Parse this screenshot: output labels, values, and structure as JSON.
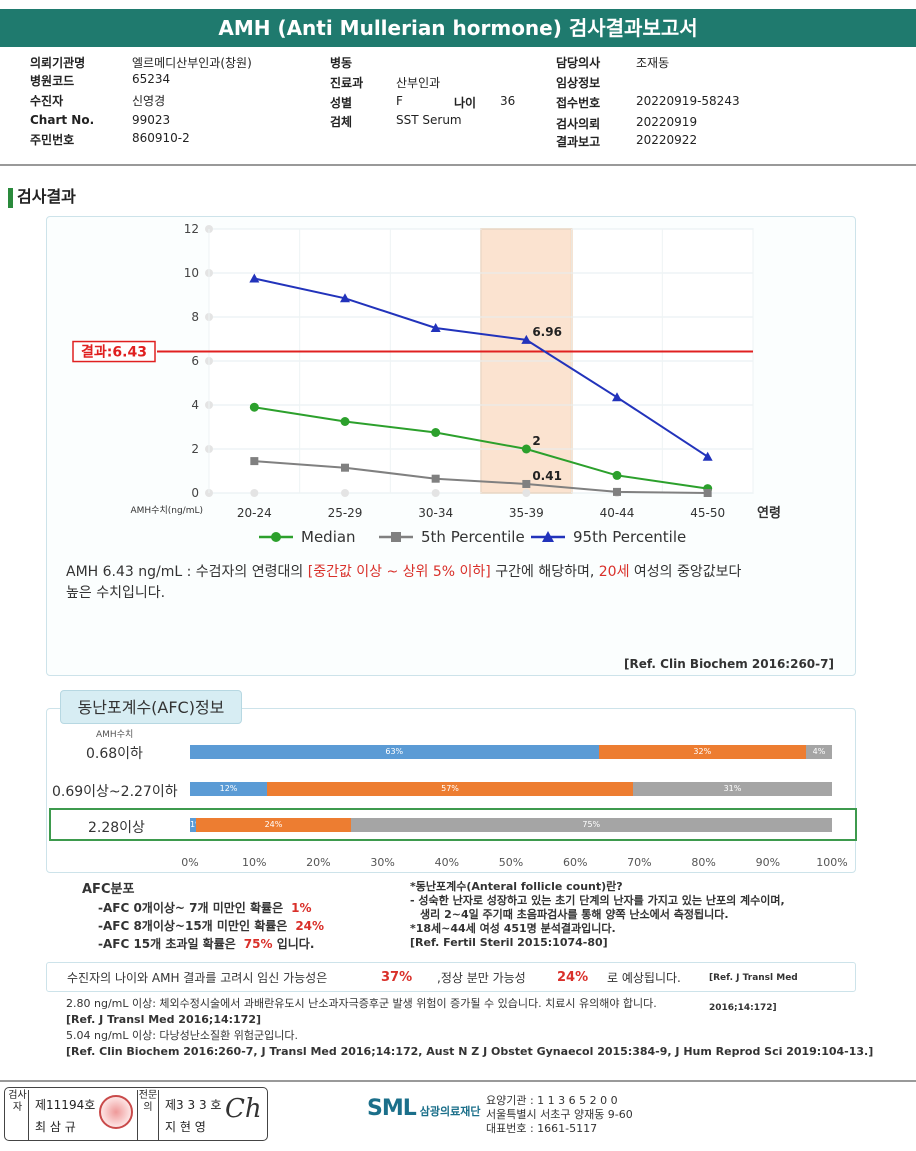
{
  "title": "AMH (Anti Mullerian hormone) 검사결과보고서",
  "info": {
    "col1": [
      {
        "k": "의뢰기관명",
        "v": "엘르메디산부인과(창원)"
      },
      {
        "k": "병원코드",
        "v": "65234"
      },
      {
        "k": "수진자",
        "v": "신영경"
      },
      {
        "k": "Chart No.",
        "v": "99023"
      },
      {
        "k": "주민번호",
        "v": "860910-2"
      }
    ],
    "col2": [
      {
        "k": "병동",
        "v": ""
      },
      {
        "k": "진료과",
        "v": "산부인과"
      },
      {
        "k": "성별",
        "v": "F"
      },
      {
        "k": "검체",
        "v": "SST Serum"
      }
    ],
    "age_label": "나이",
    "age_value": "36",
    "col3": [
      {
        "k": "담당의사",
        "v": "조재동"
      },
      {
        "k": "임상정보",
        "v": ""
      },
      {
        "k": "접수번호",
        "v": "20220919-58243"
      },
      {
        "k": "검사의뢰",
        "v": "20220919"
      },
      {
        "k": "결과보고",
        "v": "20220922"
      }
    ]
  },
  "section_title": "검사결과",
  "chart_data": {
    "type": "line",
    "categories": [
      "20-24",
      "25-29",
      "30-34",
      "35-39",
      "40-44",
      "45-50"
    ],
    "x_axis_suffix": "연령",
    "y_axis_label": "AMH수치(ng/mL)",
    "ylim": [
      0,
      12
    ],
    "yticks": [
      0,
      2,
      4,
      6,
      8,
      10,
      12
    ],
    "grid": true,
    "legend_position": "bottom",
    "highlight_category": "35-39",
    "result_line": {
      "label": "결과:6.43",
      "value": 6.43,
      "color": "#e02020"
    },
    "series": [
      {
        "name": "Median",
        "color": "#2ca02c",
        "marker": "circle",
        "values": [
          3.9,
          3.25,
          2.75,
          2.0,
          0.8,
          0.2
        ]
      },
      {
        "name": "5th Percentile",
        "color": "#808080",
        "marker": "square",
        "values": [
          1.45,
          1.15,
          0.65,
          0.41,
          0.05,
          0.0
        ]
      },
      {
        "name": "95th Percentile",
        "color": "#2233bb",
        "marker": "triangle",
        "values": [
          9.75,
          8.85,
          7.5,
          6.96,
          4.35,
          1.65
        ]
      }
    ],
    "data_labels": [
      {
        "series": 2,
        "index": 3,
        "text": "6.96"
      },
      {
        "series": 0,
        "index": 3,
        "text": "2"
      },
      {
        "series": 1,
        "index": 3,
        "text": "0.41"
      }
    ]
  },
  "note": {
    "part1": "AMH  6.43 ng/mL : 수검자의 연령대의 ",
    "range": "[중간값 이상 ~ 상위 5% 이하]",
    "part2": " 구간에 해당하며, ",
    "age": "20세",
    "part3": " 여성의 중앙값보다",
    "line2": "높은 수치입니다."
  },
  "ref1": "[Ref. Clin Biochem 2016:260-7]",
  "afc": {
    "tab": "동난포계수(AFC)정보",
    "amh_label": "AMH수치",
    "rows": [
      {
        "label": "0.68이하",
        "segments": [
          {
            "v": 63,
            "t": "63%"
          },
          {
            "v": 32,
            "t": "32%"
          },
          {
            "v": 4,
            "t": "4%"
          }
        ]
      },
      {
        "label": "0.69이상~2.27이하",
        "segments": [
          {
            "v": 12,
            "t": "12%"
          },
          {
            "v": 57,
            "t": "57%"
          },
          {
            "v": 31,
            "t": "31%"
          }
        ]
      },
      {
        "label": "2.28이상",
        "segments": [
          {
            "v": 1,
            "t": "1%"
          },
          {
            "v": 24,
            "t": "24%"
          },
          {
            "v": 75,
            "t": "75%"
          }
        ]
      }
    ],
    "xticks": [
      "0%",
      "10%",
      "20%",
      "30%",
      "40%",
      "50%",
      "60%",
      "70%",
      "80%",
      "90%",
      "100%"
    ]
  },
  "afc_info": {
    "head": "AFC분포",
    "l1": "-AFC  0개이상~ 7개 미만인 확률은",
    "v1": "1%",
    "l2": "-AFC  8개이상~15개 미만인 확률은",
    "v2": "24%",
    "l3": "-AFC  15개 초과일 확률은",
    "v3": "75%",
    "l3b": " 입니다."
  },
  "afc_def": {
    "title": "*동난포계수(Anteral follicle count)란?",
    "d1": "- 성숙한 난자로 성장하고 있는 초기 단계의 난자를 가지고 있는 난포의 계수이며,",
    "d2": "  생리 2~4일 주기때 초음파검사를 통해 양쪽 난소에서 측정됩니다.",
    "d3": "*18세~44세 여성 451명 분석결과입니다.",
    "ref": "[Ref. Fertil Steril 2015:1074-80]"
  },
  "prob": {
    "t1": "수진자의 나이와 AMH 결과를 고려시 임신 가능성은",
    "p1": "37%",
    "t2": ",정상 분만 가능성",
    "p2": "24%",
    "t3": "로 예상됩니다.",
    "ref": "[Ref. J Transl Med 2016;14:172]"
  },
  "footnotes": {
    "f1": "2.80  ng/mL  이상: 체외수정시술에서 과배란유도시 난소과자극증후군 발생 위험이 증가될 수 있습니다. 치료시 유의해야 합니다.",
    "r1": "[Ref. J Transl Med 2016;14:172]",
    "f2": "5.04  ng/mL  이상: 다낭성난소질환 위험군입니다.",
    "r2": "[Ref. Clin Biochem 2016:260-7, J Transl Med 2016;14:172, Aust N Z J Obstet Gynaecol 2015:384-9, J Hum Reprod Sci 2019:104-13.]"
  },
  "sign": {
    "v1": "검사자",
    "no1": "제11194호",
    "name1": "최 삼 규",
    "v2": "전문의",
    "no2": "제3 3 3 호",
    "name2": "지 현 영",
    "sig": "Ch"
  },
  "footer": {
    "logo": "SML",
    "logo_sub": "삼광의료재단",
    "a1": "요양기관 : 1 1 3 6 5 2 0 0",
    "a2": "서울특별시 서초구 양재동 9-60",
    "a3": "대표번호 : 1661-5117"
  }
}
